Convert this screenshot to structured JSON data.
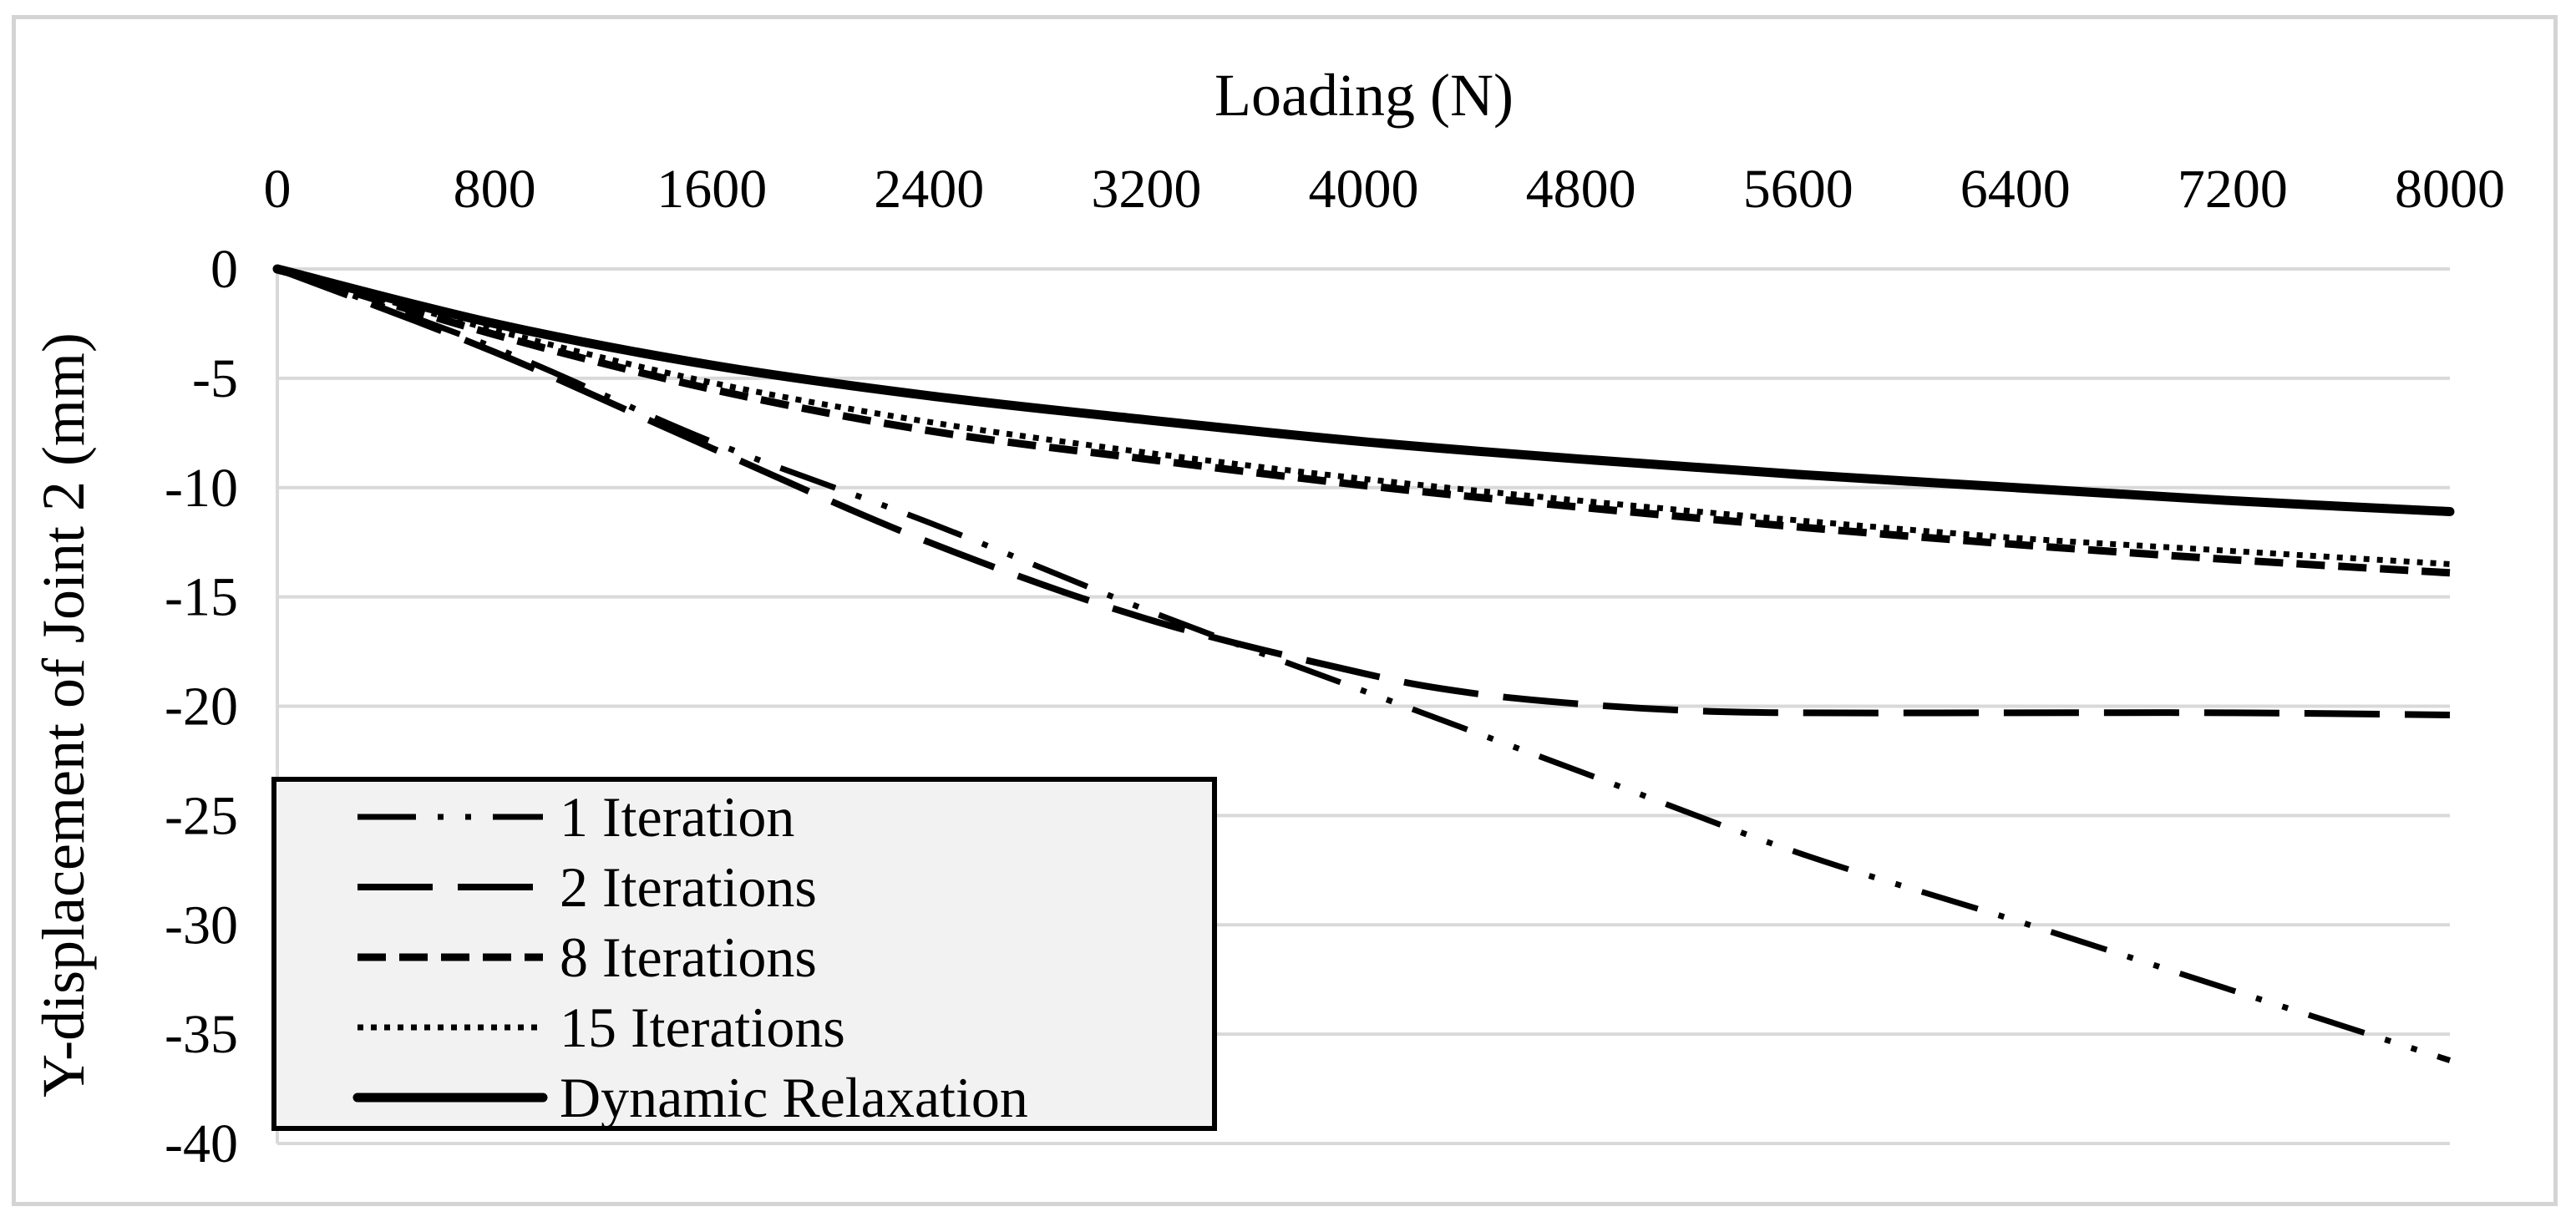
{
  "chart_data": {
    "type": "line",
    "title": "",
    "xlabel": "Loading (N)",
    "ylabel": "Y-displacement of Joint 2 (mm)",
    "x_axis_position": "top",
    "xlim": [
      0,
      8000
    ],
    "ylim": [
      -40,
      0
    ],
    "xticks": [
      "0",
      "800",
      "1600",
      "2400",
      "3200",
      "4000",
      "4800",
      "5600",
      "6400",
      "7200",
      "8000"
    ],
    "yticks": [
      "0",
      "-5",
      "-10",
      "-15",
      "-20",
      "-25",
      "-30",
      "-35",
      "-40"
    ],
    "xtick_values": [
      0,
      800,
      1600,
      2400,
      3200,
      4000,
      4800,
      5600,
      6400,
      7200,
      8000
    ],
    "ytick_values": [
      0,
      -5,
      -10,
      -15,
      -20,
      -25,
      -30,
      -35,
      -40
    ],
    "grid": "horizontal",
    "legend_position": "bottom-left",
    "series": [
      {
        "name": "1 Iteration",
        "style": "long-dash-dot-dot",
        "x": [
          0,
          800,
          1600,
          2400,
          3200,
          4000,
          4800,
          5600,
          6400,
          7200,
          8000
        ],
        "y": [
          0,
          -3.6,
          -7.9,
          -11.6,
          -15.6,
          -19.3,
          -23.0,
          -26.7,
          -29.8,
          -33.0,
          -36.2
        ]
      },
      {
        "name": "2 Iterations",
        "style": "long-dash",
        "x": [
          0,
          800,
          1600,
          2400,
          3200,
          4000,
          4400,
          4800,
          5200,
          5600,
          6400,
          7200,
          8000
        ],
        "y": [
          0,
          -3.8,
          -8.2,
          -12.5,
          -16.0,
          -18.5,
          -19.4,
          -19.9,
          -20.2,
          -20.3,
          -20.3,
          -20.3,
          -20.4
        ]
      },
      {
        "name": "8 Iterations",
        "style": "short-dash",
        "x": [
          0,
          800,
          1600,
          2400,
          3200,
          4000,
          4800,
          5600,
          6400,
          7200,
          8000
        ],
        "y": [
          0,
          -3.0,
          -5.5,
          -7.4,
          -8.7,
          -9.9,
          -10.9,
          -11.8,
          -12.6,
          -13.3,
          -13.9
        ]
      },
      {
        "name": "15 Iterations",
        "style": "dotted",
        "x": [
          0,
          800,
          1600,
          2400,
          3200,
          4000,
          4800,
          5600,
          6400,
          7200,
          8000
        ],
        "y": [
          0,
          -2.8,
          -5.2,
          -7.0,
          -8.4,
          -9.6,
          -10.6,
          -11.5,
          -12.3,
          -12.9,
          -13.5
        ]
      },
      {
        "name": "Dynamic Relaxation",
        "style": "solid-thick",
        "x": [
          0,
          800,
          1600,
          2400,
          3200,
          4000,
          4800,
          5600,
          6400,
          7200,
          8000
        ],
        "y": [
          0,
          -2.5,
          -4.4,
          -5.8,
          -6.9,
          -7.9,
          -8.7,
          -9.4,
          -10.0,
          -10.6,
          -11.1
        ]
      }
    ]
  }
}
